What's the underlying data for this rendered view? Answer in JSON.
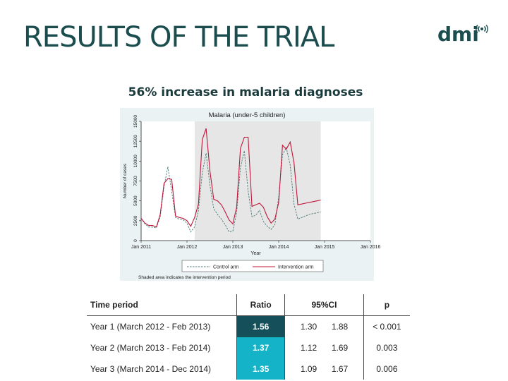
{
  "slide": {
    "title": "RESULTS OF THE TRIAL",
    "logo": "dmi",
    "subtitle": "56% increase in malaria diagnoses"
  },
  "colors": {
    "title": "#1b4d4f",
    "control": "#4a7a78",
    "intervention": "#c0163a",
    "shade": "#e6e6e6",
    "ratio_year1": "#154f5a",
    "ratio_year2_3": "#14b3c7"
  },
  "chart_data": {
    "type": "line",
    "title": "Malaria (under-5 children)",
    "xlabel": "Year",
    "ylabel": "Number of cases",
    "ylim": [
      0,
      15000
    ],
    "yticks": [
      0,
      2500,
      5000,
      7500,
      10000,
      12500,
      15000
    ],
    "xlim": [
      0,
      60
    ],
    "xticks": [
      {
        "value": 0,
        "label": "Jan 2011"
      },
      {
        "value": 12,
        "label": "Jan 2012"
      },
      {
        "value": 24,
        "label": "Jan 2013"
      },
      {
        "value": 36,
        "label": "Jan 2014"
      },
      {
        "value": 48,
        "label": "Jan 2015"
      },
      {
        "value": 60,
        "label": "Jan 2016"
      }
    ],
    "shaded_region": [
      14,
      47
    ],
    "x": [
      0,
      1,
      2,
      3,
      4,
      5,
      6,
      7,
      8,
      9,
      10,
      11,
      12,
      13,
      14,
      15,
      16,
      17,
      18,
      19,
      20,
      21,
      22,
      23,
      24,
      25,
      26,
      27,
      28,
      29,
      30,
      31,
      32,
      33,
      34,
      35,
      36,
      37,
      38,
      39,
      40,
      41,
      42,
      43,
      44,
      45,
      46,
      47
    ],
    "series": [
      {
        "name": "Control arm",
        "style": "dashed",
        "values": [
          2800,
          2100,
          1700,
          1700,
          1600,
          3000,
          6800,
          9300,
          6200,
          2900,
          2700,
          2600,
          2200,
          1100,
          1700,
          3800,
          8500,
          11000,
          7000,
          4000,
          3300,
          2700,
          2000,
          1100,
          1200,
          3500,
          9200,
          11300,
          6200,
          3000,
          3200,
          3800,
          2400,
          1800,
          1400,
          2000,
          5500,
          10800,
          11700,
          9500,
          4600,
          2700,
          2900,
          3100,
          3300,
          3400,
          3500,
          3600
        ]
      },
      {
        "name": "Intervention arm",
        "style": "solid",
        "values": [
          2800,
          2200,
          1900,
          1900,
          1700,
          3300,
          7200,
          7800,
          7700,
          3100,
          2900,
          2800,
          2500,
          1800,
          2900,
          4600,
          12700,
          14100,
          8800,
          5200,
          5000,
          4500,
          3600,
          2600,
          2100,
          4200,
          11600,
          13000,
          13000,
          4300,
          4500,
          4700,
          4200,
          3000,
          2200,
          2700,
          4800,
          12000,
          11500,
          12400,
          9800,
          4500,
          4600,
          4700,
          4800,
          4900,
          5000,
          5100
        ]
      }
    ],
    "legend_position": "bottom",
    "note": "Shaded area indicates the intervention period"
  },
  "table": {
    "headers": {
      "period": "Time period",
      "ratio": "Ratio",
      "ci": "95%CI",
      "p": "p"
    },
    "rows": [
      {
        "period": "Year 1 (March 2012 - Feb 2013)",
        "ratio": "1.56",
        "ci_low": "1.30",
        "ci_high": "1.88",
        "p": "< 0.001"
      },
      {
        "period": "Year 2 (March 2013 - Feb 2014)",
        "ratio": "1.37",
        "ci_low": "1.12",
        "ci_high": "1.69",
        "p": "0.003"
      },
      {
        "period": "Year 3 (March 2014 - Dec 2014)",
        "ratio": "1.35",
        "ci_low": "1.09",
        "ci_high": "1.67",
        "p": "0.006"
      }
    ]
  }
}
